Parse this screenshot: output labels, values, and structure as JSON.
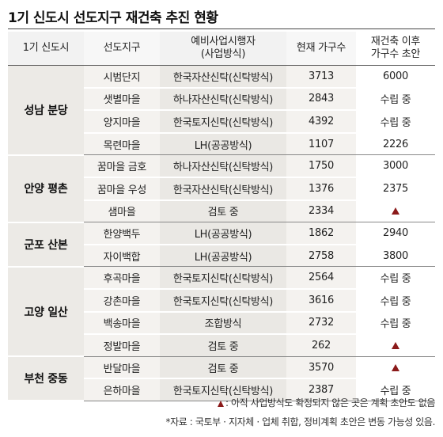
{
  "title": "1기 신도시 선도지구 재건축 추진 현황",
  "colors": {
    "marker": "#8b1a1a",
    "group_bg": "#eceae6",
    "cell_bg": "#f4f2ef",
    "op_bg": "#eae8e4"
  },
  "headers": {
    "group": "1기 신도시",
    "name": "선도지구",
    "operator_line1": "예비사업시행자",
    "operator_line2": "(사업방식)",
    "current": "현재 가구수",
    "after_line1": "재건축 이후",
    "after_line2": "가구수 초안"
  },
  "groups": [
    {
      "name": "성남 분당",
      "rows": [
        {
          "name": "시범단지",
          "operator": "한국자산신탁(신탁방식)",
          "current": "3713",
          "after": "6000"
        },
        {
          "name": "샛별마을",
          "operator": "하나자산신탁(신탁방식)",
          "current": "2843",
          "after": "수립 중"
        },
        {
          "name": "양지마을",
          "operator": "한국토지신탁(신탁방식)",
          "current": "4392",
          "after": "수립 중"
        },
        {
          "name": "목련마을",
          "operator": "LH(공공방식)",
          "current": "1107",
          "after": "2226"
        }
      ]
    },
    {
      "name": "안양 평촌",
      "rows": [
        {
          "name": "꿈마을 금호",
          "operator": "하나자산신탁(신탁방식)",
          "current": "1750",
          "after": "3000"
        },
        {
          "name": "꿈마을 우성",
          "operator": "한국자산신탁(신탁방식)",
          "current": "1376",
          "after": "2375"
        },
        {
          "name": "샘마을",
          "operator": "검토 중",
          "current": "2334",
          "after": "▲"
        }
      ]
    },
    {
      "name": "군포 산본",
      "rows": [
        {
          "name": "한양백두",
          "operator": "LH(공공방식)",
          "current": "1862",
          "after": "2940"
        },
        {
          "name": "자이백합",
          "operator": "LH(공공방식)",
          "current": "2758",
          "after": "3800"
        }
      ]
    },
    {
      "name": "고양 일산",
      "rows": [
        {
          "name": "후곡마을",
          "operator": "한국토지신탁(신탁방식)",
          "current": "2564",
          "after": "수립 중"
        },
        {
          "name": "강촌마을",
          "operator": "한국토지신탁(신탁방식)",
          "current": "3616",
          "after": "수립 중"
        },
        {
          "name": "백송마을",
          "operator": "조합방식",
          "current": "2732",
          "after": "수립 중"
        },
        {
          "name": "정발마을",
          "operator": "검토 중",
          "current": "262",
          "after": "▲"
        }
      ]
    },
    {
      "name": "부천 중동",
      "rows": [
        {
          "name": "반달마을",
          "operator": "검토 중",
          "current": "3570",
          "after": "▲"
        },
        {
          "name": "은하마을",
          "operator": "한국토지신탁(신탁방식)",
          "current": "2387",
          "after": "수립 중"
        }
      ]
    }
  ],
  "notes": {
    "marker_note": ": 아직 사업방식도 확정되지 않은 곳은 계획 초안도 없음",
    "source": "*자료 : 국토부 · 지자체 · 업체 취합, 정비계획 초안은 변동 가능성 있음."
  }
}
